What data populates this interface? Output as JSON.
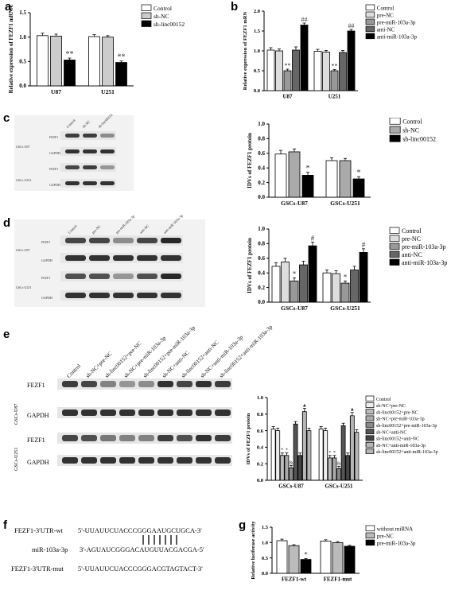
{
  "panel_letters": [
    "a",
    "b",
    "c",
    "d",
    "e",
    "f",
    "g"
  ],
  "chart_data": [
    {
      "panel": "a",
      "type": "bar",
      "ylabel": "Relative expression of FEZF1 mRNA",
      "ylim": [
        0,
        1.5
      ],
      "yticks": [
        "0.0",
        "0.5",
        "1.0",
        "1.5"
      ],
      "categories": [
        "U87",
        "U251"
      ],
      "series": [
        {
          "name": "Control",
          "color": "#ffffff",
          "values": [
            1.03,
            1.01
          ]
        },
        {
          "name": "sh-NC",
          "color": "#cccccc",
          "values": [
            1.02,
            1.0
          ]
        },
        {
          "name": "sh-linc00152",
          "color": "#000000",
          "values": [
            0.53,
            0.48
          ]
        }
      ],
      "annotations": [
        "**",
        "**"
      ]
    },
    {
      "panel": "b",
      "type": "bar",
      "ylabel": "Relative expression of FEZF1 mRN",
      "ylim": [
        0,
        2.0
      ],
      "yticks": [
        "0.0",
        "0.5",
        "1.0",
        "1.5",
        "2.0"
      ],
      "categories": [
        "U87",
        "U251"
      ],
      "series": [
        {
          "name": "Control",
          "color": "#ffffff",
          "values": [
            1.02,
            0.99
          ]
        },
        {
          "name": "pre-NC",
          "color": "#dddddd",
          "values": [
            1.0,
            0.97
          ]
        },
        {
          "name": "pre-miR-103a-3p",
          "color": "#999999",
          "values": [
            0.5,
            0.5
          ]
        },
        {
          "name": "anti-NC",
          "color": "#666666",
          "values": [
            1.02,
            0.96
          ]
        },
        {
          "name": "anti-miR-103a-3p",
          "color": "#000000",
          "values": [
            1.65,
            1.5
          ]
        }
      ],
      "annotations": [
        "**",
        "##",
        "**",
        "##"
      ]
    },
    {
      "panel": "c",
      "type": "bar",
      "ylabel": "IDVs of FEZF1 protein",
      "ylim": [
        0,
        1.0
      ],
      "yticks": [
        "0.0",
        "0.2",
        "0.4",
        "0.6",
        "0.8",
        "1.0"
      ],
      "categories": [
        "GSCs-U87",
        "GSCs-U251"
      ],
      "series": [
        {
          "name": "Control",
          "color": "#ffffff",
          "values": [
            0.59,
            0.5
          ]
        },
        {
          "name": "sh-NC",
          "color": "#aaaaaa",
          "values": [
            0.62,
            0.5
          ]
        },
        {
          "name": "sh-linc00152",
          "color": "#000000",
          "values": [
            0.3,
            0.25
          ]
        }
      ],
      "annotations": [
        "*",
        "*"
      ]
    },
    {
      "panel": "d",
      "type": "bar",
      "ylabel": "IDVs of FEZF1 protein",
      "ylim": [
        0,
        1.0
      ],
      "yticks": [
        "0.0",
        "0.2",
        "0.4",
        "0.6",
        "0.8",
        "1.0"
      ],
      "categories": [
        "GSCs-U87",
        "GSCs-U251"
      ],
      "series": [
        {
          "name": "Control",
          "color": "#ffffff",
          "values": [
            0.49,
            0.4
          ]
        },
        {
          "name": "pre-NC",
          "color": "#dddddd",
          "values": [
            0.55,
            0.39
          ]
        },
        {
          "name": "pre-miR-103a-3p",
          "color": "#999999",
          "values": [
            0.29,
            0.26
          ]
        },
        {
          "name": "anti-NC",
          "color": "#666666",
          "values": [
            0.51,
            0.44
          ]
        },
        {
          "name": "anti-miR-103a-3p",
          "color": "#000000",
          "values": [
            0.77,
            0.68
          ]
        }
      ],
      "annotations": [
        "*",
        "#",
        "*",
        "#"
      ]
    },
    {
      "panel": "e",
      "type": "bar",
      "ylabel": "IDVs of FEZF1 protein",
      "ylim": [
        0,
        1.0
      ],
      "yticks": [
        "0.0",
        "0.2",
        "0.4",
        "0.6",
        "0.8",
        "1.0"
      ],
      "categories": [
        "GSCs-U87",
        "GSCs-U251"
      ],
      "series": [
        {
          "name": "Control",
          "color": "#ffffff",
          "values": [
            0.62,
            0.62
          ]
        },
        {
          "name": "sh-NC+pre-NC",
          "color": "#eeeeee",
          "values": [
            0.6,
            0.6
          ]
        },
        {
          "name": "sh-linc00152+pre-NC",
          "color": "#bbbbbb",
          "values": [
            0.3,
            0.27
          ]
        },
        {
          "name": "sh-NC+pre-miR-103a-3p",
          "color": "#aaaaaa",
          "values": [
            0.3,
            0.27
          ]
        },
        {
          "name": "sh-linc00152+pre-miR-103a-3p",
          "color": "#888888",
          "values": [
            0.15,
            0.14
          ]
        },
        {
          "name": "sh-NC+anti-NC",
          "color": "#555555",
          "values": [
            0.68,
            0.66
          ]
        },
        {
          "name": "sh-linc00152+anti-NC",
          "color": "#444444",
          "values": [
            0.3,
            0.3
          ]
        },
        {
          "name": "sh-NC+anti-miR-103a-3p",
          "color": "#cccccc",
          "values": [
            0.83,
            0.78
          ]
        },
        {
          "name": "sh-linc00152+anti-miR-103a-3p",
          "color": "#111111",
          "values": [
            0.6,
            0.58
          ]
        }
      ],
      "annotations": [
        "*",
        "*",
        "&",
        "▲",
        "*",
        "*",
        "&",
        "▲"
      ]
    },
    {
      "panel": "g",
      "type": "bar",
      "ylabel": "Relative luciferase activity",
      "ylim": [
        0,
        1.5
      ],
      "yticks": [
        "0.0",
        "0.5",
        "1.0",
        "1.5"
      ],
      "categories": [
        "FEZF1-wt",
        "FEZF1-mut"
      ],
      "series": [
        {
          "name": "without miRNA",
          "color": "#ffffff",
          "values": [
            1.06,
            1.05
          ]
        },
        {
          "name": "pre-NC",
          "color": "#bbbbbb",
          "values": [
            0.9,
            1.0
          ]
        },
        {
          "name": "pre-miR-103a-3p",
          "color": "#000000",
          "values": [
            0.45,
            0.88
          ]
        }
      ],
      "annotations": [
        "*"
      ]
    }
  ],
  "blot_c": {
    "columns": [
      "Control",
      "sh-NC",
      "sh-linc00152"
    ],
    "rows": [
      "FEZF1",
      "GAPDH",
      "FEZF1",
      "GAPDH"
    ],
    "cells": [
      "GSCs-U87",
      "GSCs-U251"
    ]
  },
  "blot_d": {
    "columns": [
      "Control",
      "pre-NC",
      "pre-miR-103a-3p",
      "anti-NC",
      "anti-miR-103a-3p"
    ],
    "rows": [
      "FEZF1",
      "GAPDH",
      "FEZF1",
      "GAPDH"
    ],
    "cells": [
      "GSCs-U87",
      "GSCs-U251"
    ]
  },
  "blot_e": {
    "columns": [
      "Control",
      "sh-NC+pre-NC",
      "sh-linc00152+pre-NC",
      "sh-NC+pre-miR-103a-3p",
      "sh-linc00152+pre-miR-103a-3p",
      "sh-NC+anti-NC",
      "sh-linc00152+anti-NC",
      "sh-NC+anti-miR-103a-3p",
      "sh-linc00152+anti-miR-103a-3p"
    ],
    "rows": [
      "FEZF1",
      "GAPDH",
      "FEZF1",
      "GAPDH"
    ],
    "cells": [
      "GSCs-U87",
      "GSCs-U251"
    ]
  },
  "sequence_f": {
    "wt_label": "FEZF1-3'UTR-wt",
    "wt_seq": "5'-UUAUUCUACCCGGGAAUGCUGCA-3'",
    "mir_label": "miR-103a-3p",
    "mir_seq": "3'-AGUAUCGGGACAUGUUACGACGA-5'",
    "mut_label": "FEZF1-3'UTR-mut",
    "mut_seq": "5'-UUAUUCUACCCGGGACGTAGTACT-3'"
  }
}
